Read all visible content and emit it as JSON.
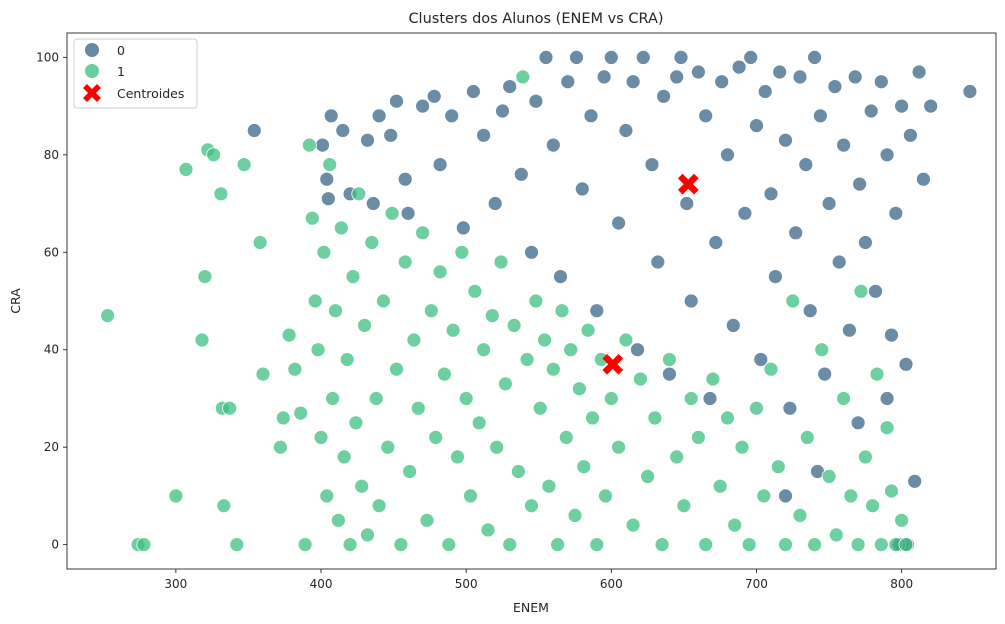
{
  "chart_data": {
    "type": "scatter",
    "title": "Clusters dos Alunos (ENEM vs CRA)",
    "xlabel": "ENEM",
    "ylabel": "CRA",
    "xlim": [
      225,
      865
    ],
    "ylim": [
      -5,
      105
    ],
    "xticks": [
      300,
      400,
      500,
      600,
      700,
      800
    ],
    "yticks": [
      0,
      20,
      40,
      60,
      80,
      100
    ],
    "grid": false,
    "legend_position": "top-left",
    "series": [
      {
        "name": "0",
        "color": "#3b6688",
        "points": [
          [
            354,
            85
          ],
          [
            401,
            82
          ],
          [
            404,
            75
          ],
          [
            405,
            71
          ],
          [
            407,
            88
          ],
          [
            415,
            85
          ],
          [
            420,
            72
          ],
          [
            432,
            83
          ],
          [
            436,
            70
          ],
          [
            440,
            88
          ],
          [
            448,
            84
          ],
          [
            452,
            91
          ],
          [
            458,
            75
          ],
          [
            460,
            68
          ],
          [
            470,
            90
          ],
          [
            478,
            92
          ],
          [
            482,
            78
          ],
          [
            490,
            88
          ],
          [
            498,
            65
          ],
          [
            505,
            93
          ],
          [
            512,
            84
          ],
          [
            520,
            70
          ],
          [
            525,
            89
          ],
          [
            530,
            94
          ],
          [
            538,
            76
          ],
          [
            545,
            60
          ],
          [
            548,
            91
          ],
          [
            555,
            100
          ],
          [
            560,
            82
          ],
          [
            565,
            55
          ],
          [
            570,
            95
          ],
          [
            576,
            100
          ],
          [
            580,
            73
          ],
          [
            586,
            88
          ],
          [
            590,
            48
          ],
          [
            595,
            96
          ],
          [
            600,
            100
          ],
          [
            605,
            66
          ],
          [
            610,
            85
          ],
          [
            615,
            95
          ],
          [
            618,
            40
          ],
          [
            622,
            100
          ],
          [
            628,
            78
          ],
          [
            632,
            58
          ],
          [
            636,
            92
          ],
          [
            640,
            35
          ],
          [
            645,
            96
          ],
          [
            648,
            100
          ],
          [
            652,
            70
          ],
          [
            655,
            50
          ],
          [
            660,
            97
          ],
          [
            665,
            88
          ],
          [
            668,
            30
          ],
          [
            672,
            62
          ],
          [
            676,
            95
          ],
          [
            680,
            80
          ],
          [
            684,
            45
          ],
          [
            688,
            98
          ],
          [
            692,
            68
          ],
          [
            696,
            100
          ],
          [
            700,
            86
          ],
          [
            703,
            38
          ],
          [
            706,
            93
          ],
          [
            710,
            72
          ],
          [
            713,
            55
          ],
          [
            716,
            97
          ],
          [
            720,
            83
          ],
          [
            723,
            28
          ],
          [
            727,
            64
          ],
          [
            730,
            96
          ],
          [
            734,
            78
          ],
          [
            737,
            48
          ],
          [
            740,
            100
          ],
          [
            744,
            88
          ],
          [
            747,
            35
          ],
          [
            750,
            70
          ],
          [
            754,
            94
          ],
          [
            757,
            58
          ],
          [
            760,
            82
          ],
          [
            764,
            44
          ],
          [
            768,
            96
          ],
          [
            771,
            74
          ],
          [
            775,
            62
          ],
          [
            779,
            89
          ],
          [
            782,
            52
          ],
          [
            786,
            95
          ],
          [
            790,
            80
          ],
          [
            793,
            43
          ],
          [
            796,
            68
          ],
          [
            800,
            90
          ],
          [
            803,
            37
          ],
          [
            806,
            84
          ],
          [
            809,
            13
          ],
          [
            812,
            97
          ],
          [
            815,
            75
          ],
          [
            820,
            90
          ],
          [
            847,
            93
          ],
          [
            720,
            10
          ],
          [
            742,
            15
          ],
          [
            770,
            25
          ],
          [
            790,
            30
          ],
          [
            800,
            0
          ],
          [
            804,
            0
          ],
          [
            798,
            0
          ]
        ]
      },
      {
        "name": "1",
        "color": "#3ec081",
        "points": [
          [
            253,
            47
          ],
          [
            274,
            0
          ],
          [
            278,
            0
          ],
          [
            300,
            10
          ],
          [
            307,
            77
          ],
          [
            318,
            42
          ],
          [
            320,
            55
          ],
          [
            322,
            81
          ],
          [
            326,
            80
          ],
          [
            331,
            72
          ],
          [
            332,
            28
          ],
          [
            333,
            8
          ],
          [
            337,
            28
          ],
          [
            342,
            0
          ],
          [
            347,
            78
          ],
          [
            358,
            62
          ],
          [
            360,
            35
          ],
          [
            372,
            20
          ],
          [
            374,
            26
          ],
          [
            378,
            43
          ],
          [
            382,
            36
          ],
          [
            386,
            27
          ],
          [
            389,
            0
          ],
          [
            392,
            82
          ],
          [
            394,
            67
          ],
          [
            396,
            50
          ],
          [
            398,
            40
          ],
          [
            400,
            22
          ],
          [
            402,
            60
          ],
          [
            404,
            10
          ],
          [
            406,
            78
          ],
          [
            408,
            30
          ],
          [
            410,
            48
          ],
          [
            412,
            5
          ],
          [
            414,
            65
          ],
          [
            416,
            18
          ],
          [
            418,
            38
          ],
          [
            420,
            0
          ],
          [
            422,
            55
          ],
          [
            424,
            25
          ],
          [
            426,
            72
          ],
          [
            428,
            12
          ],
          [
            430,
            45
          ],
          [
            432,
            2
          ],
          [
            435,
            62
          ],
          [
            438,
            30
          ],
          [
            440,
            8
          ],
          [
            443,
            50
          ],
          [
            446,
            20
          ],
          [
            449,
            68
          ],
          [
            452,
            36
          ],
          [
            455,
            0
          ],
          [
            458,
            58
          ],
          [
            461,
            15
          ],
          [
            464,
            42
          ],
          [
            467,
            28
          ],
          [
            470,
            64
          ],
          [
            473,
            5
          ],
          [
            476,
            48
          ],
          [
            479,
            22
          ],
          [
            482,
            56
          ],
          [
            485,
            35
          ],
          [
            488,
            0
          ],
          [
            491,
            44
          ],
          [
            494,
            18
          ],
          [
            497,
            60
          ],
          [
            500,
            30
          ],
          [
            503,
            10
          ],
          [
            506,
            52
          ],
          [
            509,
            25
          ],
          [
            512,
            40
          ],
          [
            515,
            3
          ],
          [
            518,
            47
          ],
          [
            521,
            20
          ],
          [
            524,
            58
          ],
          [
            527,
            33
          ],
          [
            530,
            0
          ],
          [
            533,
            45
          ],
          [
            536,
            15
          ],
          [
            539,
            96
          ],
          [
            542,
            38
          ],
          [
            545,
            8
          ],
          [
            548,
            50
          ],
          [
            551,
            28
          ],
          [
            554,
            42
          ],
          [
            557,
            12
          ],
          [
            560,
            36
          ],
          [
            563,
            0
          ],
          [
            566,
            48
          ],
          [
            569,
            22
          ],
          [
            572,
            40
          ],
          [
            575,
            6
          ],
          [
            578,
            32
          ],
          [
            581,
            16
          ],
          [
            584,
            44
          ],
          [
            587,
            26
          ],
          [
            590,
            0
          ],
          [
            593,
            38
          ],
          [
            596,
            10
          ],
          [
            600,
            30
          ],
          [
            605,
            20
          ],
          [
            610,
            42
          ],
          [
            615,
            4
          ],
          [
            620,
            34
          ],
          [
            625,
            14
          ],
          [
            630,
            26
          ],
          [
            635,
            0
          ],
          [
            640,
            38
          ],
          [
            645,
            18
          ],
          [
            650,
            8
          ],
          [
            655,
            30
          ],
          [
            660,
            22
          ],
          [
            665,
            0
          ],
          [
            670,
            34
          ],
          [
            675,
            12
          ],
          [
            680,
            26
          ],
          [
            685,
            4
          ],
          [
            690,
            20
          ],
          [
            695,
            0
          ],
          [
            700,
            28
          ],
          [
            705,
            10
          ],
          [
            710,
            36
          ],
          [
            715,
            16
          ],
          [
            720,
            0
          ],
          [
            725,
            50
          ],
          [
            730,
            6
          ],
          [
            735,
            22
          ],
          [
            740,
            0
          ],
          [
            745,
            40
          ],
          [
            750,
            14
          ],
          [
            755,
            2
          ],
          [
            760,
            30
          ],
          [
            765,
            10
          ],
          [
            770,
            0
          ],
          [
            772,
            52
          ],
          [
            775,
            18
          ],
          [
            780,
            8
          ],
          [
            783,
            35
          ],
          [
            786,
            0
          ],
          [
            790,
            24
          ],
          [
            793,
            11
          ],
          [
            796,
            0
          ],
          [
            800,
            5
          ],
          [
            803,
            0
          ]
        ]
      }
    ],
    "centroids": {
      "name": "Centroides",
      "color": "#ff0000",
      "points": [
        [
          653,
          74
        ],
        [
          601,
          37
        ]
      ]
    }
  }
}
